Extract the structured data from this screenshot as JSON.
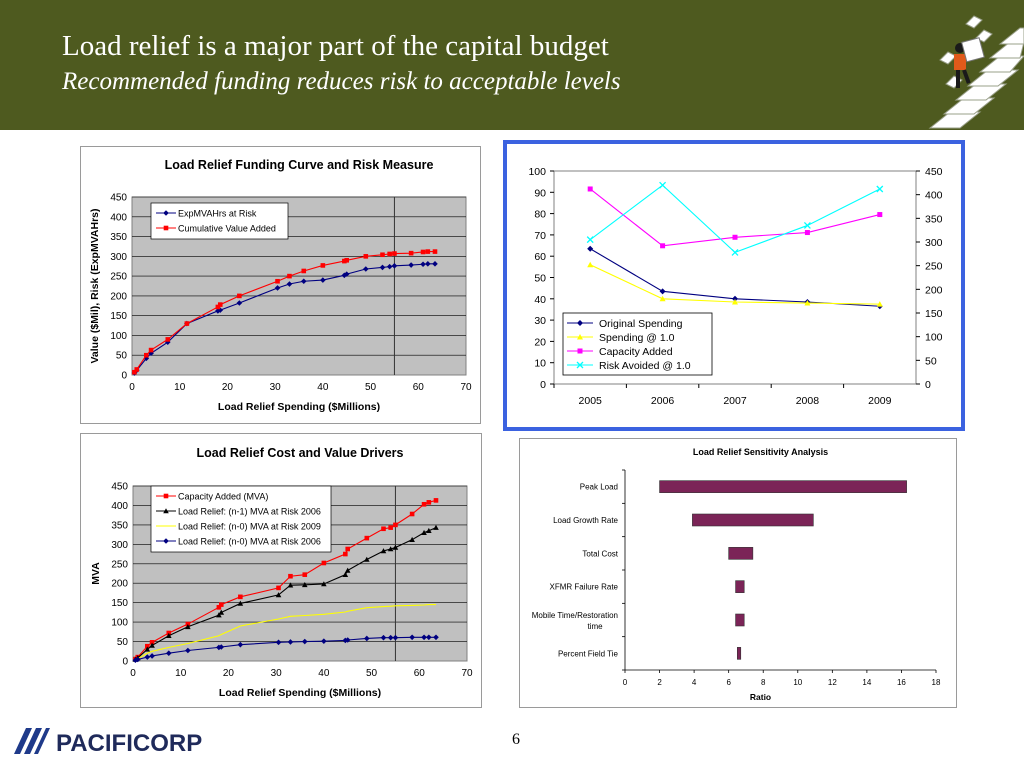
{
  "header": {
    "title": "Load relief is a major part of the capital budget",
    "subtitle": "Recommended funding reduces risk to acceptable levels"
  },
  "footer": {
    "page_number": "6",
    "logo_text": "PACIFICORP"
  },
  "colors": {
    "header_bg": "#4e5a1f",
    "plot_bg": "#c0c0c0",
    "highlight_border": "#3b62e0",
    "navy": "#000080",
    "red": "#ff0000",
    "yellow": "#ffff00",
    "magenta": "#ff00ff",
    "cyan": "#00ffff",
    "black": "#000000",
    "maroon": "#7b2457"
  },
  "chart_data": [
    {
      "type": "line",
      "title": "Load Relief Funding Curve and Risk Measure",
      "xlabel": "Load Relief Spending ($Millions)",
      "ylabel": "Value ($Mil), Risk (ExpMVAHrs)",
      "xlim": [
        0,
        70
      ],
      "ylim": [
        0,
        450
      ],
      "xticks": [
        0,
        10,
        20,
        30,
        40,
        50,
        60,
        70
      ],
      "yticks": [
        0,
        50,
        100,
        150,
        200,
        250,
        300,
        350,
        400,
        450
      ],
      "grid": true,
      "legend": "top-left",
      "vline": 55,
      "series": [
        {
          "name": "ExpMVAHrs at Risk",
          "color": "navy",
          "marker": "diamond",
          "x": [
            0.5,
            1,
            3,
            4,
            7.5,
            11.5,
            18,
            18.5,
            22.5,
            30.5,
            33,
            36,
            40,
            44.5,
            45,
            49,
            52.5,
            54,
            55,
            58.5,
            61,
            62,
            63.5
          ],
          "y": [
            5,
            12,
            42,
            55,
            83,
            130,
            162,
            164,
            182,
            220,
            230,
            237,
            240,
            252,
            255,
            268,
            272,
            274,
            276,
            278,
            280,
            281,
            281
          ]
        },
        {
          "name": "Cumulative Value Added",
          "color": "red",
          "marker": "square",
          "x": [
            0.5,
            1,
            3,
            4,
            7.5,
            11.5,
            18,
            18.5,
            22.5,
            30.5,
            33,
            36,
            40,
            44.5,
            45,
            49,
            52.5,
            54,
            55,
            58.5,
            61,
            62,
            63.5
          ],
          "y": [
            7,
            14,
            50,
            63,
            90,
            130,
            172,
            178,
            200,
            237,
            250,
            263,
            277,
            288,
            290,
            300,
            304,
            306,
            307,
            308,
            311,
            312,
            312
          ]
        }
      ]
    },
    {
      "type": "line",
      "categories": [
        "2005",
        "2006",
        "2007",
        "2008",
        "2009"
      ],
      "yticks_left": [
        0,
        10,
        20,
        30,
        40,
        50,
        60,
        70,
        80,
        90,
        100
      ],
      "yticks_right": [
        0,
        50,
        100,
        150,
        200,
        250,
        300,
        350,
        400,
        450
      ],
      "ylim_left": [
        0,
        100
      ],
      "ylim_right": [
        0,
        450
      ],
      "grid": false,
      "legend": "bottom-left",
      "series": [
        {
          "name": "Original Spending",
          "color": "navy",
          "marker": "diamond",
          "axis": "left",
          "values": [
            63.5,
            43.5,
            40,
            38.5,
            36.5
          ]
        },
        {
          "name": "Spending @ 1.0",
          "color": "yellow",
          "marker": "triangle",
          "axis": "left",
          "values": [
            56,
            40,
            38.5,
            38,
            37.5
          ]
        },
        {
          "name": "Capacity Added",
          "color": "magenta",
          "marker": "square",
          "axis": "right",
          "values": [
            412,
            292,
            310,
            320,
            358
          ]
        },
        {
          "name": "Risk Avoided @ 1.0",
          "color": "cyan",
          "marker": "x",
          "axis": "right",
          "values": [
            305,
            420,
            278,
            335,
            412
          ]
        }
      ]
    },
    {
      "type": "line",
      "title": "Load Relief Cost and Value Drivers",
      "xlabel": "Load Relief Spending ($Millions)",
      "ylabel": "MVA",
      "xlim": [
        0,
        70
      ],
      "ylim": [
        0,
        450
      ],
      "xticks": [
        0,
        10,
        20,
        30,
        40,
        50,
        60,
        70
      ],
      "yticks": [
        0,
        50,
        100,
        150,
        200,
        250,
        300,
        350,
        400,
        450
      ],
      "grid": true,
      "legend": "top-left",
      "vline": 55,
      "series": [
        {
          "name": "Capacity Added (MVA)",
          "color": "red",
          "marker": "square",
          "x": [
            0.5,
            1,
            3,
            4,
            7.5,
            11.5,
            18,
            18.5,
            22.5,
            30.5,
            33,
            36,
            40,
            44.5,
            45,
            49,
            52.5,
            54,
            55,
            58.5,
            61,
            62,
            63.5
          ],
          "y": [
            5,
            10,
            38,
            48,
            72,
            95,
            138,
            145,
            165,
            188,
            218,
            222,
            252,
            275,
            288,
            316,
            340,
            343,
            350,
            378,
            403,
            408,
            413
          ]
        },
        {
          "name": "Load Relief: (n-1) MVA at Risk 2006",
          "color": "black",
          "marker": "triangle",
          "x": [
            0.5,
            1,
            3,
            4,
            7.5,
            11.5,
            18,
            18.5,
            22.5,
            30.5,
            33,
            36,
            40,
            44.5,
            45,
            49,
            52.5,
            54,
            55,
            58.5,
            61,
            62,
            63.5
          ],
          "y": [
            4,
            8,
            30,
            40,
            65,
            88,
            118,
            125,
            148,
            170,
            195,
            196,
            198,
            222,
            233,
            261,
            283,
            288,
            292,
            312,
            330,
            335,
            343
          ]
        },
        {
          "name": "Load Relief: (n-0) MVA at Risk 2009",
          "color": "yellow",
          "marker": "none",
          "x": [
            0.5,
            1,
            3,
            4,
            7.5,
            11.5,
            18,
            18.5,
            22.5,
            30.5,
            33,
            36,
            40,
            44.5,
            45,
            49,
            52.5,
            54,
            55,
            58.5,
            61,
            62,
            63.5
          ],
          "y": [
            3,
            6,
            20,
            25,
            35,
            45,
            65,
            68,
            90,
            108,
            115,
            117,
            120,
            126,
            128,
            137,
            140,
            141,
            142,
            143,
            144,
            145,
            145
          ]
        },
        {
          "name": "Load Relief: (n-0) MVA at Risk 2006",
          "color": "navy",
          "marker": "diamond",
          "x": [
            0.5,
            1,
            3,
            4,
            7.5,
            11.5,
            18,
            18.5,
            22.5,
            30.5,
            33,
            36,
            40,
            44.5,
            45,
            49,
            52.5,
            54,
            55,
            58.5,
            61,
            62,
            63.5
          ],
          "y": [
            2,
            4,
            10,
            13,
            20,
            27,
            35,
            36,
            42,
            48,
            49,
            50,
            51,
            53,
            54,
            58,
            60,
            60,
            60,
            61,
            61,
            61,
            61
          ]
        }
      ]
    },
    {
      "type": "bar",
      "orientation": "horizontal",
      "title": "Load Relief Sensitivity Analysis",
      "xlabel": "Ratio",
      "xlim": [
        0,
        18
      ],
      "xticks": [
        0,
        2,
        4,
        6,
        8,
        10,
        12,
        14,
        16,
        18
      ],
      "grid": false,
      "color": "maroon",
      "categories": [
        "Peak Load",
        "Load Growth Rate",
        "Total Cost",
        "XFMR Failure Rate",
        "Mobile Time/Restoration time",
        "Percent Field Tie"
      ],
      "ranges": [
        [
          2,
          16.3
        ],
        [
          3.9,
          10.9
        ],
        [
          6,
          7.4
        ],
        [
          6.4,
          6.9
        ],
        [
          6.4,
          6.9
        ],
        [
          6.5,
          6.7
        ]
      ]
    }
  ]
}
